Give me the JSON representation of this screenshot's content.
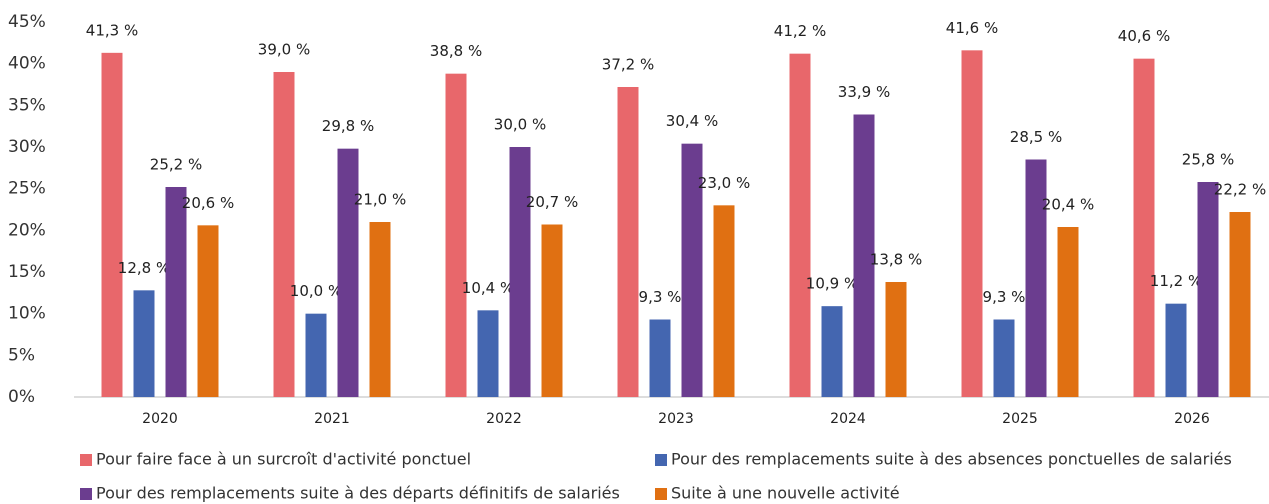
{
  "chart_data": {
    "type": "bar",
    "categories": [
      "2020",
      "2021",
      "2022",
      "2023",
      "2024",
      "2025",
      "2026"
    ],
    "series": [
      {
        "name": "Pour faire face à un surcroît d'activité ponctuel",
        "color": "#e8676b",
        "values": [
          41.3,
          39.0,
          38.8,
          37.2,
          41.2,
          41.6,
          40.6
        ],
        "value_labels": [
          "41,3 %",
          "39,0 %",
          "38,8 %",
          "37,2 %",
          "41,2 %",
          "41,6 %",
          "40,6 %"
        ]
      },
      {
        "name": "Pour des remplacements suite à des absences ponctuelles de salariés",
        "color": "#4466b0",
        "values": [
          12.8,
          10.0,
          10.4,
          9.3,
          10.9,
          9.3,
          11.2
        ],
        "value_labels": [
          "12,8 %",
          "10,0 %",
          "10,4 %",
          "9,3 %",
          "10,9 %",
          "9,3 %",
          "11,2 %"
        ]
      },
      {
        "name": "Pour des remplacements suite à des départs définitifs de salariés",
        "color": "#6b3d8f",
        "values": [
          25.2,
          29.8,
          30.0,
          30.4,
          33.9,
          28.5,
          25.8
        ],
        "value_labels": [
          "25,2 %",
          "29,8 %",
          "30,0 %",
          "30,4 %",
          "33,9 %",
          "28,5 %",
          "25,8 %"
        ]
      },
      {
        "name": "Suite à une nouvelle activité",
        "color": "#e07012",
        "values": [
          20.6,
          21.0,
          20.7,
          23.0,
          13.8,
          20.4,
          22.2
        ],
        "value_labels": [
          "20,6 %",
          "21,0 %",
          "20,7 %",
          "23,0 %",
          "13,8 %",
          "20,4 %",
          "22,2 %"
        ]
      }
    ],
    "ylim": [
      0,
      45
    ],
    "yticks": [
      {
        "value": 0,
        "label": "0%"
      },
      {
        "value": 5,
        "label": "5%"
      },
      {
        "value": 10,
        "label": "10%"
      },
      {
        "value": 15,
        "label": "15%"
      },
      {
        "value": 20,
        "label": "20%"
      },
      {
        "value": 25,
        "label": "25%"
      },
      {
        "value": 30,
        "label": "30%"
      },
      {
        "value": 35,
        "label": "35%"
      },
      {
        "value": 40,
        "label": "40%"
      },
      {
        "value": 45,
        "label": "45%"
      }
    ],
    "grid": false,
    "legend": "bottom"
  }
}
